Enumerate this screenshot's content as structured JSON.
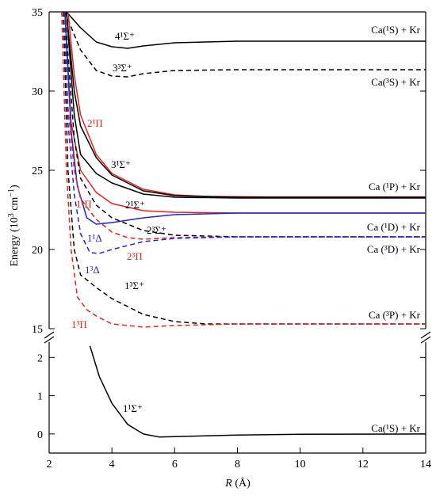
{
  "chart_data": {
    "type": "line",
    "xlabel": "R (Å)",
    "ylabel": "Energy (10³ cm⁻¹)",
    "colors": {
      "singlet_sigma": "#000000",
      "pi": "#e8221e",
      "delta": "#1a28d8"
    },
    "axes": [
      {
        "id": "upper",
        "xlim": [
          2,
          14
        ],
        "ylim": [
          15,
          35
        ],
        "yticks": [
          15,
          20,
          25,
          30,
          35
        ],
        "series": [
          {
            "name": "4¹Σ⁺",
            "color": "#000000",
            "style": "solid",
            "points": [
              [
                2.55,
                35
              ],
              [
                3.0,
                34.0
              ],
              [
                3.5,
                33.1
              ],
              [
                4.0,
                32.8
              ],
              [
                4.5,
                32.7
              ],
              [
                5.0,
                32.85
              ],
              [
                6.0,
                33.05
              ],
              [
                8.0,
                33.15
              ],
              [
                10.0,
                33.15
              ],
              [
                14.0,
                33.15
              ]
            ]
          },
          {
            "name": "3³Σ⁺",
            "color": "#000000",
            "style": "dashed",
            "points": [
              [
                2.5,
                35
              ],
              [
                3.0,
                32.6
              ],
              [
                3.5,
                31.3
              ],
              [
                4.0,
                30.95
              ],
              [
                4.5,
                30.9
              ],
              [
                5.0,
                31.1
              ],
              [
                6.0,
                31.3
              ],
              [
                8.0,
                31.35
              ],
              [
                14.0,
                31.35
              ]
            ]
          },
          {
            "name": "2¹Π",
            "color": "#e8221e",
            "style": "solid",
            "points": [
              [
                2.6,
                35
              ],
              [
                2.8,
                31.0
              ],
              [
                3.0,
                28.5
              ],
              [
                3.5,
                26.0
              ],
              [
                4.0,
                24.8
              ],
              [
                5.0,
                23.8
              ],
              [
                6.0,
                23.45
              ],
              [
                7.0,
                23.35
              ],
              [
                9.0,
                23.32
              ],
              [
                14.0,
                23.32
              ]
            ]
          },
          {
            "name": "3¹Σ⁺",
            "color": "#000000",
            "style": "solid",
            "points": [
              [
                2.55,
                35
              ],
              [
                2.8,
                30.0
              ],
              [
                3.0,
                27.8
              ],
              [
                3.5,
                25.8
              ],
              [
                4.0,
                24.7
              ],
              [
                5.0,
                23.7
              ],
              [
                6.0,
                23.4
              ],
              [
                8.0,
                23.3
              ],
              [
                14.0,
                23.3
              ]
            ]
          },
          {
            "name": "1¹Π",
            "color": "#e8221e",
            "style": "solid",
            "points": [
              [
                2.5,
                35
              ],
              [
                2.7,
                28.0
              ],
              [
                3.0,
                25.0
              ],
              [
                3.5,
                23.6
              ],
              [
                4.0,
                22.9
              ],
              [
                5.0,
                22.45
              ],
              [
                6.0,
                22.35
              ],
              [
                8.0,
                22.3
              ],
              [
                14.0,
                22.3
              ]
            ]
          },
          {
            "name": "2¹Σ⁺",
            "color": "#000000",
            "style": "solid",
            "points": [
              [
                2.55,
                35
              ],
              [
                2.8,
                28.5
              ],
              [
                3.0,
                26.0
              ],
              [
                3.5,
                24.8
              ],
              [
                4.0,
                24.2
              ],
              [
                5.0,
                23.5
              ],
              [
                6.0,
                23.3
              ],
              [
                8.0,
                23.25
              ],
              [
                14.0,
                23.25
              ]
            ]
          },
          {
            "name": "1¹Δ",
            "color": "#1a28d8",
            "style": "solid",
            "points": [
              [
                2.5,
                35
              ],
              [
                2.7,
                27.5
              ],
              [
                2.9,
                24.0
              ],
              [
                3.2,
                22.0
              ],
              [
                3.5,
                21.6
              ],
              [
                4.0,
                21.7
              ],
              [
                5.0,
                22.0
              ],
              [
                6.0,
                22.2
              ],
              [
                8.0,
                22.3
              ],
              [
                14.0,
                22.3
              ]
            ]
          },
          {
            "name": "2³Σ⁺",
            "color": "#000000",
            "style": "dashed",
            "points": [
              [
                2.5,
                35
              ],
              [
                2.8,
                27.0
              ],
              [
                3.0,
                24.5
              ],
              [
                3.5,
                22.8
              ],
              [
                4.0,
                22.0
              ],
              [
                5.0,
                21.2
              ],
              [
                6.0,
                20.9
              ],
              [
                8.0,
                20.8
              ],
              [
                14.0,
                20.8
              ]
            ]
          },
          {
            "name": "2³Π",
            "color": "#e8221e",
            "style": "dashed",
            "points": [
              [
                2.45,
                35
              ],
              [
                2.6,
                29.0
              ],
              [
                2.8,
                25.0
              ],
              [
                3.0,
                23.2
              ],
              [
                3.5,
                21.9
              ],
              [
                4.0,
                21.1
              ],
              [
                4.5,
                20.75
              ],
              [
                5.0,
                20.65
              ],
              [
                6.0,
                20.75
              ],
              [
                8.0,
                20.8
              ],
              [
                14.0,
                20.8
              ]
            ]
          },
          {
            "name": "1³Δ",
            "color": "#1a28d8",
            "style": "dashed",
            "points": [
              [
                2.5,
                35
              ],
              [
                2.6,
                28.0
              ],
              [
                2.8,
                23.5
              ],
              [
                3.0,
                21.0
              ],
              [
                3.3,
                19.8
              ],
              [
                3.6,
                19.75
              ],
              [
                4.0,
                20.0
              ],
              [
                5.0,
                20.5
              ],
              [
                6.0,
                20.7
              ],
              [
                8.0,
                20.8
              ],
              [
                14.0,
                20.8
              ]
            ]
          },
          {
            "name": "1³Σ⁺",
            "color": "#000000",
            "style": "dashed",
            "points": [
              [
                2.45,
                35
              ],
              [
                2.6,
                25.0
              ],
              [
                2.8,
                20.0
              ],
              [
                3.0,
                18.4
              ],
              [
                3.5,
                17.6
              ],
              [
                4.0,
                16.9
              ],
              [
                5.0,
                15.9
              ],
              [
                6.0,
                15.45
              ],
              [
                7.0,
                15.3
              ],
              [
                14.0,
                15.3
              ]
            ]
          },
          {
            "name": "1³Π",
            "color": "#e8221e",
            "style": "dashed",
            "points": [
              [
                2.4,
                35
              ],
              [
                2.55,
                25.0
              ],
              [
                2.7,
                20.0
              ],
              [
                2.9,
                17.0
              ],
              [
                3.2,
                16.2
              ],
              [
                3.5,
                15.8
              ],
              [
                4.0,
                15.3
              ],
              [
                5.0,
                15.1
              ],
              [
                6.0,
                15.2
              ],
              [
                8.0,
                15.3
              ],
              [
                14.0,
                15.3
              ]
            ]
          }
        ]
      },
      {
        "id": "lower",
        "xlim": [
          2,
          14
        ],
        "ylim": [
          -0.5,
          2.4
        ],
        "yticks": [
          0,
          1,
          2
        ],
        "series": [
          {
            "name": "1¹Σ⁺",
            "color": "#000000",
            "style": "solid",
            "points": [
              [
                3.3,
                2.3
              ],
              [
                3.6,
                1.5
              ],
              [
                4.0,
                0.8
              ],
              [
                4.5,
                0.25
              ],
              [
                5.0,
                0.0
              ],
              [
                5.5,
                -0.08
              ],
              [
                6.0,
                -0.07
              ],
              [
                8.0,
                -0.03
              ],
              [
                10.0,
                -0.01
              ],
              [
                14.0,
                0.0
              ]
            ]
          }
        ]
      }
    ],
    "xticks": [
      2,
      4,
      6,
      8,
      10,
      12,
      14
    ]
  },
  "labels": {
    "state_4s": "4¹Σ⁺",
    "state_3t": "3³Σ⁺",
    "state_2p": "2¹Π",
    "state_3s": "3¹Σ⁺",
    "state_1p": "1¹Π",
    "state_2s": "2¹Σ⁺",
    "state_1d": "1¹Δ",
    "state_2ts": "2³Σ⁺",
    "state_2tp": "2³Π",
    "state_1td": "1³Δ",
    "state_1ts": "1³Σ⁺",
    "state_1tp": "1³Π",
    "state_1sg": "1¹Σ⁺",
    "asym_1s_top": "Ca(¹S) + Kr",
    "asym_3s": "Ca(³S) + Kr",
    "asym_1p": "Ca (¹P) + Kr",
    "asym_1d": "Ca (¹D) + Kr",
    "asym_3d": "Ca (³D) + Kr",
    "asym_3p": "Ca (³P) + Kr",
    "asym_1s_bottom": "Ca(¹S) + Kr"
  }
}
